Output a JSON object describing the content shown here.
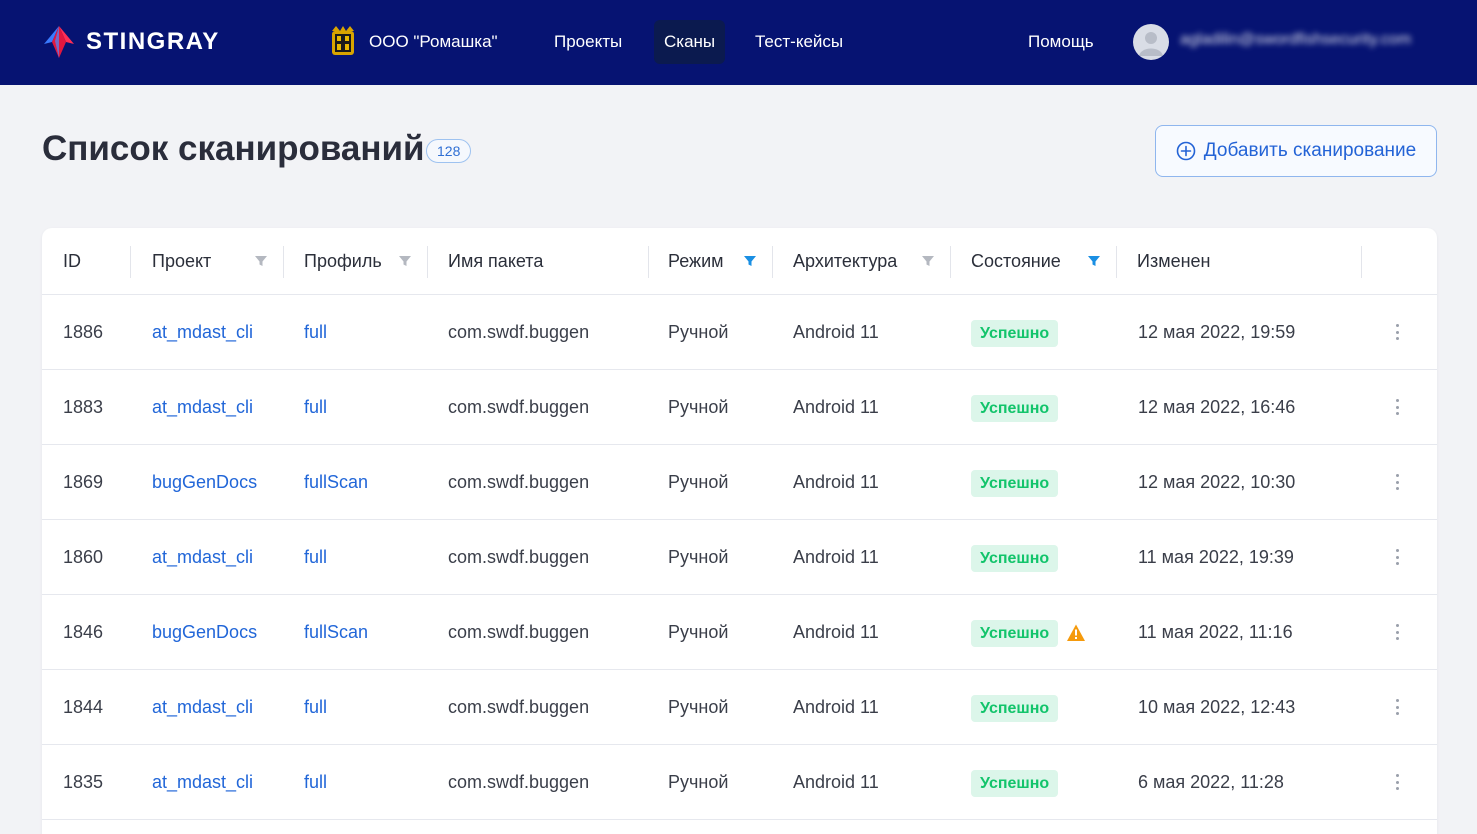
{
  "brand": {
    "name": "STINGRAY"
  },
  "header": {
    "org": "ООО \"Ромашка\"",
    "nav": [
      "Проекты",
      "Сканы",
      "Тест-кейсы"
    ],
    "active_nav": "Сканы",
    "help": "Помощь",
    "user_email": "agladilin@swordfishsecurity.com"
  },
  "page": {
    "title": "Список сканирований",
    "count": "128",
    "add_button": "Добавить сканирование"
  },
  "table": {
    "columns": [
      "ID",
      "Проект",
      "Профиль",
      "Имя пакета",
      "Режим",
      "Архитектура",
      "Состояние",
      "Изменен"
    ],
    "filters": {
      "project": "inactive",
      "profile": "inactive",
      "mode": "active",
      "architecture": "inactive",
      "state": "active"
    },
    "rows": [
      {
        "id": "1886",
        "project": "at_mdast_cli",
        "profile": "full",
        "package": "com.swdf.buggen",
        "mode": "Ручной",
        "arch": "Android 11",
        "state": "Успешно",
        "warning": false,
        "changed": "12 мая 2022, 19:59"
      },
      {
        "id": "1883",
        "project": "at_mdast_cli",
        "profile": "full",
        "package": "com.swdf.buggen",
        "mode": "Ручной",
        "arch": "Android 11",
        "state": "Успешно",
        "warning": false,
        "changed": "12 мая 2022, 16:46"
      },
      {
        "id": "1869",
        "project": "bugGenDocs",
        "profile": "fullScan",
        "package": "com.swdf.buggen",
        "mode": "Ручной",
        "arch": "Android 11",
        "state": "Успешно",
        "warning": false,
        "changed": "12 мая 2022, 10:30"
      },
      {
        "id": "1860",
        "project": "at_mdast_cli",
        "profile": "full",
        "package": "com.swdf.buggen",
        "mode": "Ручной",
        "arch": "Android 11",
        "state": "Успешно",
        "warning": false,
        "changed": "11 мая 2022, 19:39"
      },
      {
        "id": "1846",
        "project": "bugGenDocs",
        "profile": "fullScan",
        "package": "com.swdf.buggen",
        "mode": "Ручной",
        "arch": "Android 11",
        "state": "Успешно",
        "warning": true,
        "changed": "11 мая 2022, 11:16"
      },
      {
        "id": "1844",
        "project": "at_mdast_cli",
        "profile": "full",
        "package": "com.swdf.buggen",
        "mode": "Ручной",
        "arch": "Android 11",
        "state": "Успешно",
        "warning": false,
        "changed": "10 мая 2022, 12:43"
      },
      {
        "id": "1835",
        "project": "at_mdast_cli",
        "profile": "full",
        "package": "com.swdf.buggen",
        "mode": "Ручной",
        "arch": "Android 11",
        "state": "Успешно",
        "warning": false,
        "changed": "6 мая 2022, 11:28"
      }
    ]
  },
  "colors": {
    "header_bg": "#061372",
    "link": "#2166d8",
    "success_text": "#12c46b",
    "success_bg": "#dcf6ea",
    "warning": "#f59a0c",
    "filter_active": "#1a8fe3",
    "filter_inactive": "#b4b8c0"
  },
  "icons": {
    "logo": "stingray-logo-icon",
    "org": "org-crest-icon",
    "avatar": "user-avatar-icon",
    "add": "plus-circle-icon",
    "filter": "filter-funnel-icon",
    "warning": "warning-triangle-icon",
    "row_menu": "kebab-menu-icon"
  }
}
